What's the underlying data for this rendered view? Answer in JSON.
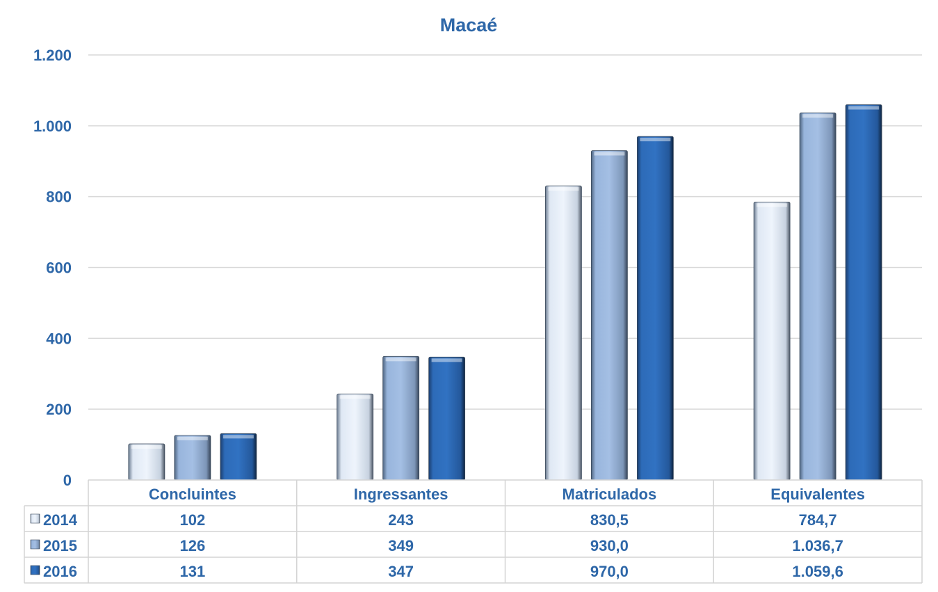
{
  "chart_data": {
    "type": "bar",
    "title": "Macaé",
    "categories": [
      "Concluintes",
      "Ingressantes",
      "Matriculados",
      "Equivalentes"
    ],
    "series": [
      {
        "name": "2014",
        "values": [
          102,
          243,
          830.5,
          784.7
        ],
        "labels": [
          "102",
          "243",
          "830,5",
          "784,7"
        ],
        "color": "#e9f1fb"
      },
      {
        "name": "2015",
        "values": [
          126,
          349,
          930.0,
          1036.7
        ],
        "labels": [
          "126",
          "349",
          "930,0",
          "1.036,7"
        ],
        "color": "#a2bde2"
      },
      {
        "name": "2016",
        "values": [
          131,
          347,
          970.0,
          1059.6
        ],
        "labels": [
          "131",
          "347",
          "970,0",
          "1.059,6"
        ],
        "color": "#2f6fbd"
      }
    ],
    "ylim": [
      0,
      1200
    ],
    "yticks": [
      0,
      200,
      400,
      600,
      800,
      1000,
      1200
    ],
    "ytick_labels": [
      "0",
      "200",
      "400",
      "600",
      "800",
      "1.000",
      "1.200"
    ],
    "xlabel": "",
    "ylabel": "",
    "grid": true,
    "legend": "data-table"
  }
}
